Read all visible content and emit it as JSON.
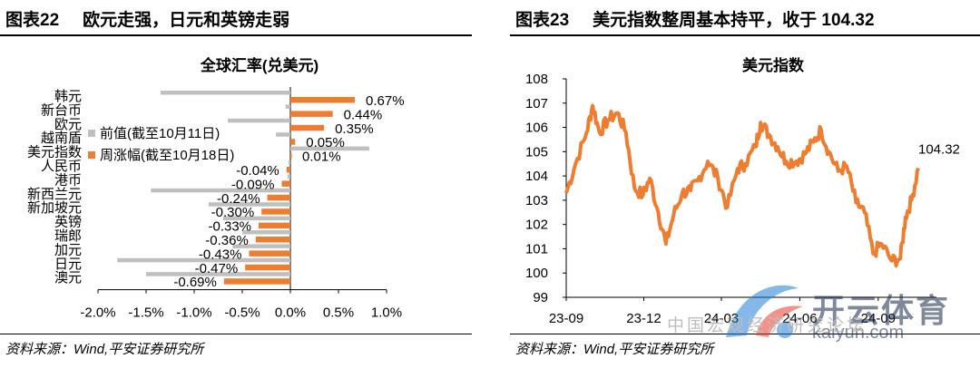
{
  "left_panel": {
    "figure_no": "图表22",
    "figure_title": "欧元走强，日元和英镑走弱",
    "source": "资料来源：Wind,平安证券研究所"
  },
  "right_panel": {
    "figure_no": "图表23",
    "figure_title": "美元指数整周基本持平，收于 104.32",
    "source": "资料来源：Wind,平安证券研究所"
  },
  "watermark": {
    "brand": "开云体育",
    "url": "kaiyun.com",
    "overlay_text": "中国宏观经济研究论坛",
    "colors": {
      "blue": "#1e7fd8",
      "red": "#e23b2e"
    }
  },
  "chart_data": [
    {
      "type": "bar",
      "orientation": "horizontal",
      "title": "全球汇率(兑美元)",
      "categories": [
        "韩元",
        "新台币",
        "欧元",
        "越南盾",
        "美元指数",
        "人民币",
        "港币",
        "新西兰元",
        "新加坡元",
        "英镑",
        "瑞郎",
        "加元",
        "日元",
        "澳元"
      ],
      "series": [
        {
          "name": "前值(截至10月11日)",
          "color": "#bfbfbf",
          "values": [
            -1.35,
            -0.05,
            -0.65,
            -0.15,
            0.82,
            -0.02,
            -0.03,
            -1.45,
            -0.85,
            -0.7,
            -0.5,
            -0.6,
            -1.8,
            -1.5
          ]
        },
        {
          "name": "周涨幅(截至10月18日)",
          "color": "#ed7d31",
          "values": [
            0.67,
            0.44,
            0.35,
            0.05,
            0.01,
            -0.04,
            -0.09,
            -0.24,
            -0.3,
            -0.33,
            -0.36,
            -0.43,
            -0.47,
            -0.69
          ],
          "labels": [
            "0.67%",
            "0.44%",
            "0.35%",
            "0.05%",
            "0.01%",
            "-0.04%",
            "-0.09%",
            "-0.24%",
            "-0.30%",
            "-0.33%",
            "-0.36%",
            "-0.43%",
            "-0.47%",
            "-0.69%"
          ]
        }
      ],
      "xlim": [
        -2.0,
        1.0
      ],
      "xticks": [
        "-2.0%",
        "-1.5%",
        "-1.0%",
        "-0.5%",
        "0.0%",
        "0.5%",
        "1.0%"
      ],
      "legend_position": "left-middle",
      "grid": false
    },
    {
      "type": "line",
      "title": "美元指数",
      "color": "#ed7d31",
      "ylim": [
        99,
        108
      ],
      "yticks": [
        "99",
        "100",
        "101",
        "102",
        "103",
        "104",
        "105",
        "106",
        "107",
        "108"
      ],
      "xticks": [
        "23-09",
        "23-12",
        "24-03",
        "24-06",
        "24-09"
      ],
      "end_label": "104.32",
      "x": [
        "23-09-01",
        "23-09-12",
        "23-09-25",
        "23-10-02",
        "23-10-10",
        "23-10-20",
        "23-10-31",
        "23-11-10",
        "23-11-20",
        "23-11-30",
        "23-12-08",
        "23-12-18",
        "23-12-27",
        "24-01-05",
        "24-01-15",
        "24-01-25",
        "24-02-02",
        "24-02-14",
        "24-02-26",
        "24-03-08",
        "24-03-20",
        "24-03-29",
        "24-04-10",
        "24-04-16",
        "24-04-26",
        "24-05-06",
        "24-05-16",
        "24-05-28",
        "24-06-07",
        "24-06-17",
        "24-06-26",
        "24-07-05",
        "24-07-16",
        "24-07-26",
        "24-08-06",
        "24-08-16",
        "24-08-26",
        "24-09-05",
        "24-09-17",
        "24-09-27",
        "24-10-03",
        "24-10-10",
        "24-10-18"
      ],
      "values": [
        103.3,
        104.5,
        105.8,
        106.9,
        105.8,
        106.3,
        106.6,
        105.8,
        103.5,
        103.2,
        103.9,
        102.5,
        101.2,
        102.4,
        103.3,
        103.4,
        103.8,
        104.6,
        103.9,
        102.7,
        104.3,
        104.5,
        105.2,
        106.2,
        105.7,
        105.2,
        104.6,
        104.6,
        104.9,
        105.4,
        105.9,
        105.0,
        104.2,
        104.4,
        102.9,
        102.5,
        100.8,
        101.2,
        100.5,
        100.6,
        102.3,
        103.0,
        104.32
      ]
    }
  ]
}
